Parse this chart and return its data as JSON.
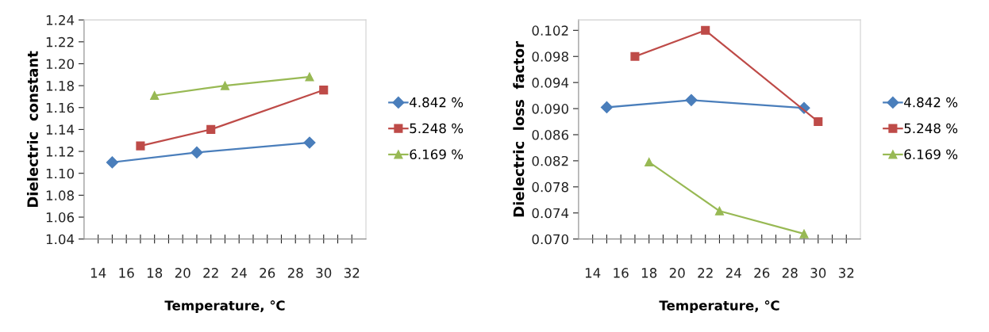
{
  "chart_data": [
    {
      "type": "line",
      "xlabel": "Temperature, ℃",
      "ylabel": "Dielectric  constant",
      "xlim": [
        13,
        33
      ],
      "ylim": [
        1.04,
        1.24
      ],
      "xticks": [
        14,
        {
          "value": 15,
          "label": null
        },
        16,
        {
          "value": 17,
          "label": null
        },
        18,
        {
          "value": 19,
          "label": null
        },
        20,
        {
          "value": 21,
          "label": null
        },
        22,
        {
          "value": 23,
          "label": null
        },
        24,
        {
          "value": 25,
          "label": null
        },
        26,
        {
          "value": 27,
          "label": null
        },
        28,
        {
          "value": 29,
          "label": null
        },
        30,
        {
          "value": 31,
          "label": null
        },
        32
      ],
      "yticks": [
        {
          "value": 1.04,
          "label": "1.04"
        },
        {
          "value": 1.06,
          "label": "1.06"
        },
        {
          "value": 1.08,
          "label": "1.08"
        },
        {
          "value": 1.1,
          "label": "1.10"
        },
        {
          "value": 1.12,
          "label": "1.12"
        },
        {
          "value": 1.14,
          "label": "1.14"
        },
        {
          "value": 1.16,
          "label": "1.16"
        },
        {
          "value": 1.18,
          "label": "1.18"
        },
        {
          "value": 1.2,
          "label": "1.20"
        },
        {
          "value": 1.22,
          "label": "1.22"
        },
        {
          "value": 1.24,
          "label": "1.24"
        }
      ],
      "grid": false,
      "legend": "right",
      "series": [
        {
          "name": "4.842 %",
          "color": "#4a7ebb",
          "marker": "diamond",
          "x": [
            15,
            21,
            29
          ],
          "values": [
            1.11,
            1.119,
            1.128
          ]
        },
        {
          "name": "5.248 %",
          "color": "#be4b48",
          "marker": "square",
          "x": [
            17,
            22,
            30
          ],
          "values": [
            1.125,
            1.14,
            1.176
          ]
        },
        {
          "name": "6.169 %",
          "color": "#98b954",
          "marker": "triangle",
          "x": [
            18,
            23,
            29
          ],
          "values": [
            1.171,
            1.18,
            1.188
          ]
        }
      ]
    },
    {
      "type": "line",
      "xlabel": "Temperature, ℃",
      "ylabel": "Dielectric  loss  factor",
      "xlim": [
        13,
        33
      ],
      "ylim": [
        0.07,
        0.1036
      ],
      "xticks": [
        14,
        {
          "value": 15,
          "label": null
        },
        16,
        {
          "value": 17,
          "label": null
        },
        18,
        {
          "value": 19,
          "label": null
        },
        20,
        {
          "value": 21,
          "label": null
        },
        22,
        {
          "value": 23,
          "label": null
        },
        24,
        {
          "value": 25,
          "label": null
        },
        26,
        {
          "value": 27,
          "label": null
        },
        28,
        {
          "value": 29,
          "label": null
        },
        30,
        {
          "value": 31,
          "label": null
        },
        32
      ],
      "yticks": [
        {
          "value": 0.07,
          "label": "0.070"
        },
        {
          "value": 0.074,
          "label": "0.074"
        },
        {
          "value": 0.078,
          "label": "0.078"
        },
        {
          "value": 0.082,
          "label": "0.082"
        },
        {
          "value": 0.086,
          "label": "0.086"
        },
        {
          "value": 0.09,
          "label": "0.090"
        },
        {
          "value": 0.094,
          "label": "0.094"
        },
        {
          "value": 0.098,
          "label": "0.098"
        },
        {
          "value": 0.102,
          "label": "0.102"
        }
      ],
      "grid": false,
      "legend": "right",
      "series": [
        {
          "name": "4.842 %",
          "color": "#4a7ebb",
          "marker": "diamond",
          "x": [
            15,
            21,
            29
          ],
          "values": [
            0.0902,
            0.0913,
            0.0901
          ]
        },
        {
          "name": "5.248 %",
          "color": "#be4b48",
          "marker": "square",
          "x": [
            17,
            22,
            30
          ],
          "values": [
            0.098,
            0.102,
            0.088
          ]
        },
        {
          "name": "6.169 %",
          "color": "#98b954",
          "marker": "triangle",
          "x": [
            18,
            23,
            29
          ],
          "values": [
            0.0818,
            0.0743,
            0.0708
          ]
        }
      ]
    }
  ]
}
